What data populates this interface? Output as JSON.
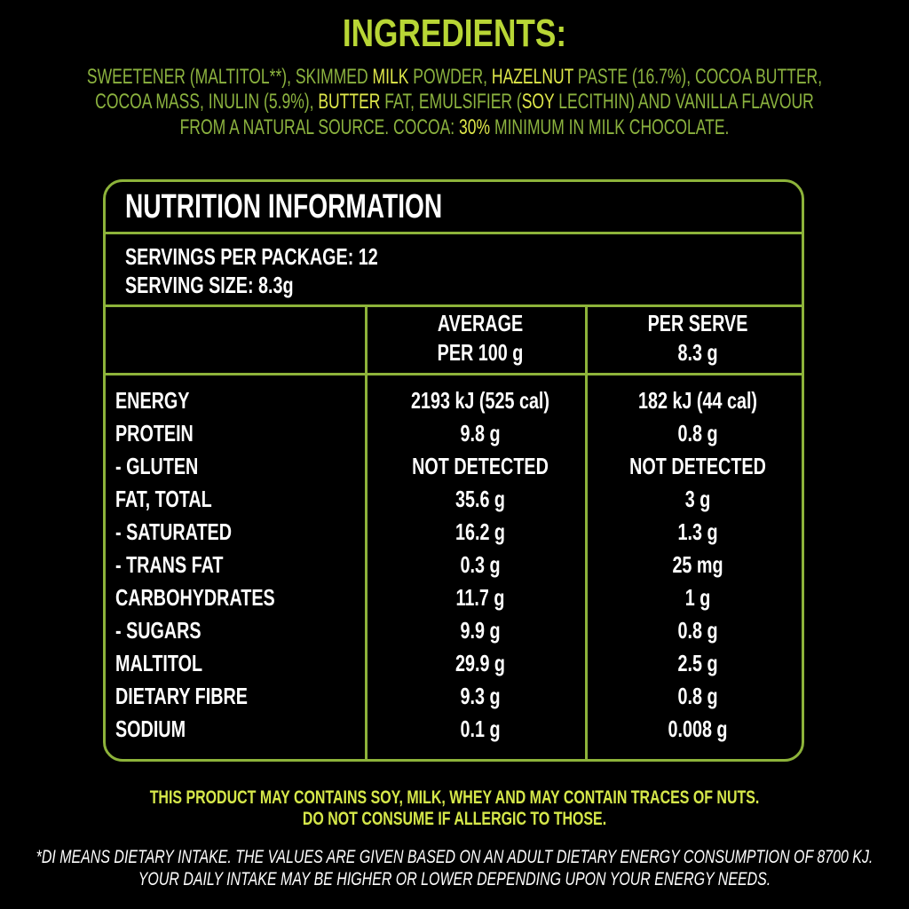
{
  "ingredients": {
    "title": "INGREDIENTS:",
    "lines": [
      [
        {
          "text": "SWEETENER (MALTITOL**), SKIMMED ",
          "highlight": false
        },
        {
          "text": "MILK",
          "highlight": true
        },
        {
          "text": " POWDER, ",
          "highlight": false
        },
        {
          "text": "HAZELNUT",
          "highlight": true
        },
        {
          "text": " PASTE (16.7%), COCOA BUTTER,",
          "highlight": false
        }
      ],
      [
        {
          "text": "COCOA MASS, INULIN (5.9%), ",
          "highlight": false
        },
        {
          "text": "BUTTER",
          "highlight": true
        },
        {
          "text": " FAT, EMULSIFIER (",
          "highlight": false
        },
        {
          "text": "SOY",
          "highlight": true
        },
        {
          "text": " LECITHIN) AND VANILLA FLAVOUR",
          "highlight": false
        }
      ],
      [
        {
          "text": "FROM A NATURAL SOURCE. COCOA: ",
          "highlight": false
        },
        {
          "text": "30%",
          "highlight": true
        },
        {
          "text": " MINIMUM IN MILK CHOCOLATE.",
          "highlight": false
        }
      ]
    ]
  },
  "nutrition": {
    "title": "NUTRITION INFORMATION",
    "servings_per_package": "SERVINGS PER PACKAGE: 12",
    "serving_size": "SERVING SIZE: 8.3g",
    "columns": [
      [
        "AVERAGE",
        "PER 100 g"
      ],
      [
        "PER SERVE",
        "8.3 g"
      ]
    ],
    "rows": [
      [
        "ENERGY",
        "2193 kJ (525 cal)",
        "182 kJ (44 cal)"
      ],
      [
        "PROTEIN",
        "9.8 g",
        "0.8 g"
      ],
      [
        "- GLUTEN",
        "NOT DETECTED",
        "NOT DETECTED"
      ],
      [
        "FAT, TOTAL",
        "35.6 g",
        "3 g"
      ],
      [
        "- SATURATED",
        "16.2 g",
        "1.3 g"
      ],
      [
        "- TRANS FAT",
        "0.3 g",
        "25 mg"
      ],
      [
        "CARBOHYDRATES",
        "11.7 g",
        "1 g"
      ],
      [
        "- SUGARS",
        "9.9 g",
        "0.8 g"
      ],
      [
        "MALTITOL",
        "29.9 g",
        "2.5 g"
      ],
      [
        "DIETARY FIBRE",
        "9.3 g",
        "0.8 g"
      ],
      [
        "SODIUM",
        "0.1 g",
        "0.008 g"
      ]
    ]
  },
  "allergen": [
    "THIS PRODUCT MAY CONTAINS SOY, MILK, WHEY AND MAY CONTAIN TRACES OF NUTS.",
    "DO NOT CONSUME IF ALLERGIC TO THOSE."
  ],
  "disclaimer": [
    "*DI MEANS DIETARY INTAKE. THE VALUES ARE GIVEN BASED ON AN ADULT DIETARY ENERGY CONSUMPTION OF 8700 KJ.",
    "YOUR DAILY INTAKE MAY BE HIGHER OR LOWER DEPENDING UPON YOUR ENERGY NEEDS."
  ]
}
